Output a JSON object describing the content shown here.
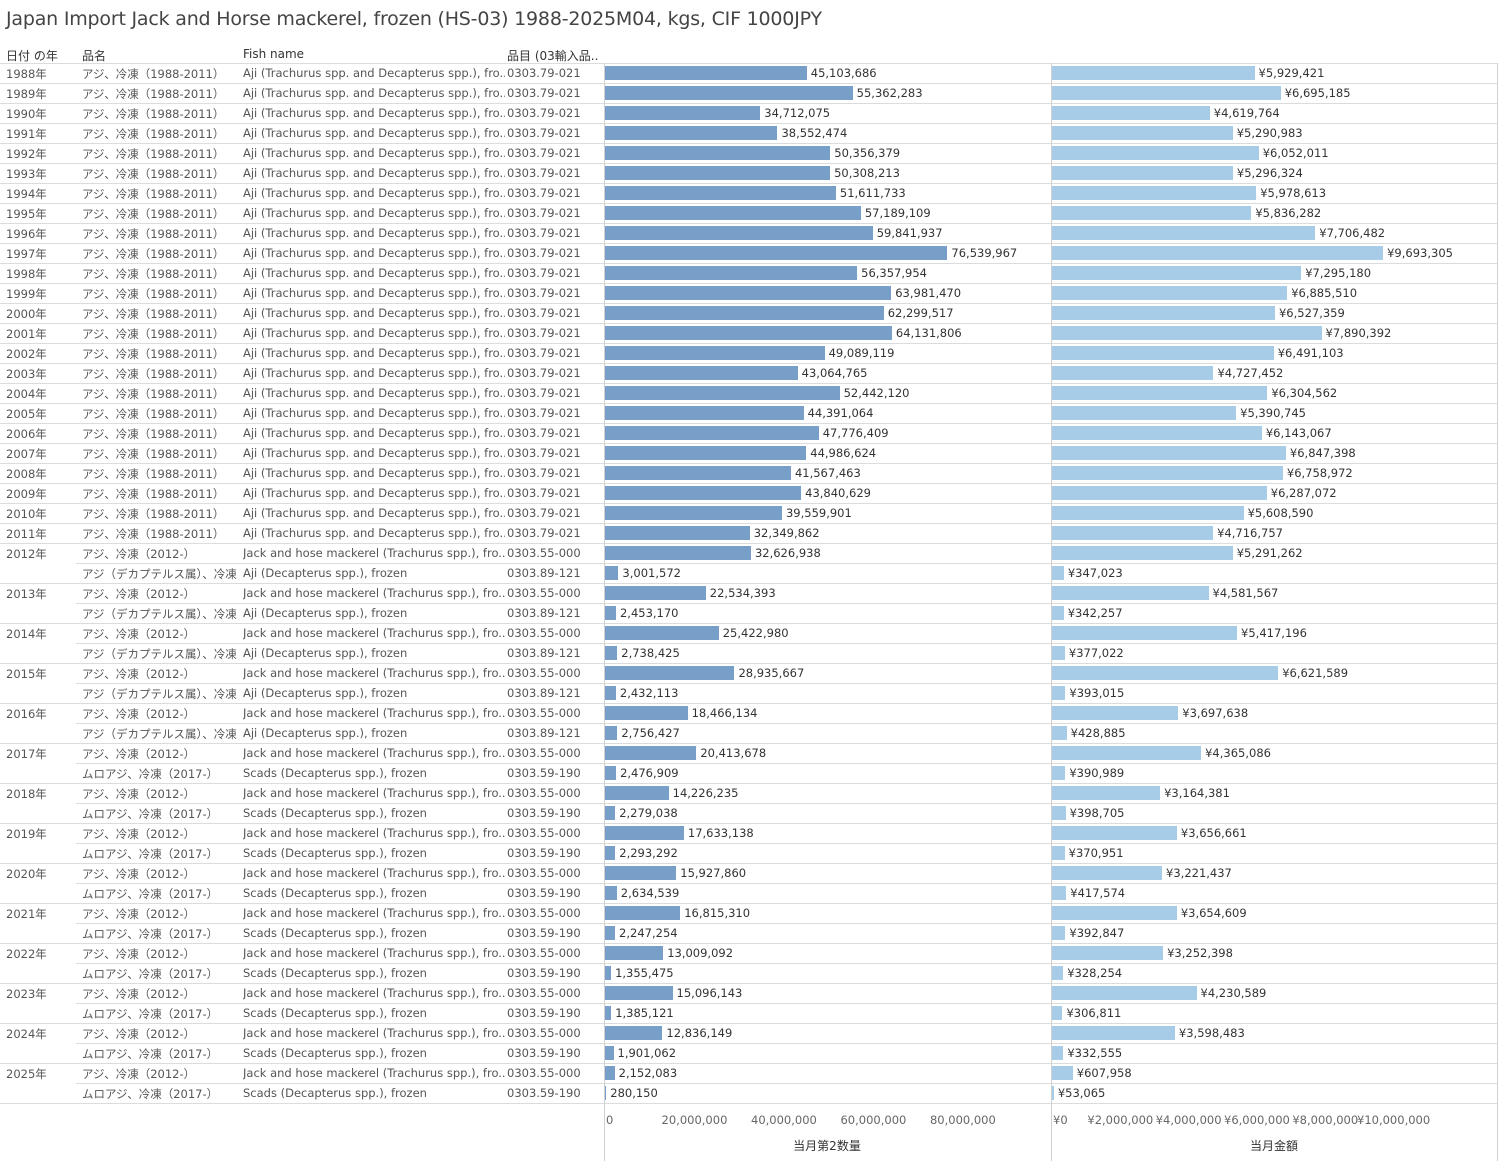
{
  "title": "Japan Import Jack and Horse mackerel, frozen (HS-03) 1988-2025M04, kgs, CIF 1000JPY",
  "headers": {
    "year": "日付 の年",
    "name": "品名",
    "fish": "Fish name",
    "code": "品目 (03輸入品.."
  },
  "chart_data": {
    "type": "bar",
    "title": "Japan Import Jack and Horse mackerel, frozen (HS-03) 1988-2025M04, kgs, CIF 1000JPY",
    "series": [
      {
        "name": "当月第2数量",
        "axis_label": "当月第2数量",
        "xlim": [
          0,
          95000000
        ],
        "ticks": [
          "0",
          "20,000,000",
          "40,000,000",
          "60,000,000",
          "80,000,000"
        ],
        "tick_values": [
          0,
          20000000,
          40000000,
          60000000,
          80000000
        ]
      },
      {
        "name": "当月金額",
        "axis_label": "当月金額",
        "xlim": [
          0,
          12500000
        ],
        "ticks": [
          "¥0",
          "¥2,000,000",
          "¥4,000,000",
          "¥6,000,000",
          "¥8,000,000",
          "¥10,000,000"
        ],
        "tick_values": [
          0,
          2000000,
          4000000,
          6000000,
          8000000,
          10000000
        ]
      }
    ],
    "rows": [
      {
        "year": "1988年",
        "name": "アジ、冷凍（1988-2011）",
        "fish": "Aji (Trachurus spp. and Decapterus spp.), fro..",
        "code": "0303.79-021",
        "qty": 45103686,
        "qty_label": "45,103,686",
        "val": 5929421,
        "val_label": "¥5,929,421"
      },
      {
        "year": "1989年",
        "name": "アジ、冷凍（1988-2011）",
        "fish": "Aji (Trachurus spp. and Decapterus spp.), fro..",
        "code": "0303.79-021",
        "qty": 55362283,
        "qty_label": "55,362,283",
        "val": 6695185,
        "val_label": "¥6,695,185"
      },
      {
        "year": "1990年",
        "name": "アジ、冷凍（1988-2011）",
        "fish": "Aji (Trachurus spp. and Decapterus spp.), fro..",
        "code": "0303.79-021",
        "qty": 34712075,
        "qty_label": "34,712,075",
        "val": 4619764,
        "val_label": "¥4,619,764"
      },
      {
        "year": "1991年",
        "name": "アジ、冷凍（1988-2011）",
        "fish": "Aji (Trachurus spp. and Decapterus spp.), fro..",
        "code": "0303.79-021",
        "qty": 38552474,
        "qty_label": "38,552,474",
        "val": 5290983,
        "val_label": "¥5,290,983"
      },
      {
        "year": "1992年",
        "name": "アジ、冷凍（1988-2011）",
        "fish": "Aji (Trachurus spp. and Decapterus spp.), fro..",
        "code": "0303.79-021",
        "qty": 50356379,
        "qty_label": "50,356,379",
        "val": 6052011,
        "val_label": "¥6,052,011"
      },
      {
        "year": "1993年",
        "name": "アジ、冷凍（1988-2011）",
        "fish": "Aji (Trachurus spp. and Decapterus spp.), fro..",
        "code": "0303.79-021",
        "qty": 50308213,
        "qty_label": "50,308,213",
        "val": 5296324,
        "val_label": "¥5,296,324"
      },
      {
        "year": "1994年",
        "name": "アジ、冷凍（1988-2011）",
        "fish": "Aji (Trachurus spp. and Decapterus spp.), fro..",
        "code": "0303.79-021",
        "qty": 51611733,
        "qty_label": "51,611,733",
        "val": 5978613,
        "val_label": "¥5,978,613"
      },
      {
        "year": "1995年",
        "name": "アジ、冷凍（1988-2011）",
        "fish": "Aji (Trachurus spp. and Decapterus spp.), fro..",
        "code": "0303.79-021",
        "qty": 57189109,
        "qty_label": "57,189,109",
        "val": 5836282,
        "val_label": "¥5,836,282"
      },
      {
        "year": "1996年",
        "name": "アジ、冷凍（1988-2011）",
        "fish": "Aji (Trachurus spp. and Decapterus spp.), fro..",
        "code": "0303.79-021",
        "qty": 59841937,
        "qty_label": "59,841,937",
        "val": 7706482,
        "val_label": "¥7,706,482"
      },
      {
        "year": "1997年",
        "name": "アジ、冷凍（1988-2011）",
        "fish": "Aji (Trachurus spp. and Decapterus spp.), fro..",
        "code": "0303.79-021",
        "qty": 76539967,
        "qty_label": "76,539,967",
        "val": 9693305,
        "val_label": "¥9,693,305"
      },
      {
        "year": "1998年",
        "name": "アジ、冷凍（1988-2011）",
        "fish": "Aji (Trachurus spp. and Decapterus spp.), fro..",
        "code": "0303.79-021",
        "qty": 56357954,
        "qty_label": "56,357,954",
        "val": 7295180,
        "val_label": "¥7,295,180"
      },
      {
        "year": "1999年",
        "name": "アジ、冷凍（1988-2011）",
        "fish": "Aji (Trachurus spp. and Decapterus spp.), fro..",
        "code": "0303.79-021",
        "qty": 63981470,
        "qty_label": "63,981,470",
        "val": 6885510,
        "val_label": "¥6,885,510"
      },
      {
        "year": "2000年",
        "name": "アジ、冷凍（1988-2011）",
        "fish": "Aji (Trachurus spp. and Decapterus spp.), fro..",
        "code": "0303.79-021",
        "qty": 62299517,
        "qty_label": "62,299,517",
        "val": 6527359,
        "val_label": "¥6,527,359"
      },
      {
        "year": "2001年",
        "name": "アジ、冷凍（1988-2011）",
        "fish": "Aji (Trachurus spp. and Decapterus spp.), fro..",
        "code": "0303.79-021",
        "qty": 64131806,
        "qty_label": "64,131,806",
        "val": 7890392,
        "val_label": "¥7,890,392"
      },
      {
        "year": "2002年",
        "name": "アジ、冷凍（1988-2011）",
        "fish": "Aji (Trachurus spp. and Decapterus spp.), fro..",
        "code": "0303.79-021",
        "qty": 49089119,
        "qty_label": "49,089,119",
        "val": 6491103,
        "val_label": "¥6,491,103"
      },
      {
        "year": "2003年",
        "name": "アジ、冷凍（1988-2011）",
        "fish": "Aji (Trachurus spp. and Decapterus spp.), fro..",
        "code": "0303.79-021",
        "qty": 43064765,
        "qty_label": "43,064,765",
        "val": 4727452,
        "val_label": "¥4,727,452"
      },
      {
        "year": "2004年",
        "name": "アジ、冷凍（1988-2011）",
        "fish": "Aji (Trachurus spp. and Decapterus spp.), fro..",
        "code": "0303.79-021",
        "qty": 52442120,
        "qty_label": "52,442,120",
        "val": 6304562,
        "val_label": "¥6,304,562"
      },
      {
        "year": "2005年",
        "name": "アジ、冷凍（1988-2011）",
        "fish": "Aji (Trachurus spp. and Decapterus spp.), fro..",
        "code": "0303.79-021",
        "qty": 44391064,
        "qty_label": "44,391,064",
        "val": 5390745,
        "val_label": "¥5,390,745"
      },
      {
        "year": "2006年",
        "name": "アジ、冷凍（1988-2011）",
        "fish": "Aji (Trachurus spp. and Decapterus spp.), fro..",
        "code": "0303.79-021",
        "qty": 47776409,
        "qty_label": "47,776,409",
        "val": 6143067,
        "val_label": "¥6,143,067"
      },
      {
        "year": "2007年",
        "name": "アジ、冷凍（1988-2011）",
        "fish": "Aji (Trachurus spp. and Decapterus spp.), fro..",
        "code": "0303.79-021",
        "qty": 44986624,
        "qty_label": "44,986,624",
        "val": 6847398,
        "val_label": "¥6,847,398"
      },
      {
        "year": "2008年",
        "name": "アジ、冷凍（1988-2011）",
        "fish": "Aji (Trachurus spp. and Decapterus spp.), fro..",
        "code": "0303.79-021",
        "qty": 41567463,
        "qty_label": "41,567,463",
        "val": 6758972,
        "val_label": "¥6,758,972"
      },
      {
        "year": "2009年",
        "name": "アジ、冷凍（1988-2011）",
        "fish": "Aji (Trachurus spp. and Decapterus spp.), fro..",
        "code": "0303.79-021",
        "qty": 43840629,
        "qty_label": "43,840,629",
        "val": 6287072,
        "val_label": "¥6,287,072"
      },
      {
        "year": "2010年",
        "name": "アジ、冷凍（1988-2011）",
        "fish": "Aji (Trachurus spp. and Decapterus spp.), fro..",
        "code": "0303.79-021",
        "qty": 39559901,
        "qty_label": "39,559,901",
        "val": 5608590,
        "val_label": "¥5,608,590"
      },
      {
        "year": "2011年",
        "name": "アジ、冷凍（1988-2011）",
        "fish": "Aji (Trachurus spp. and Decapterus spp.), fro..",
        "code": "0303.79-021",
        "qty": 32349862,
        "qty_label": "32,349,862",
        "val": 4716757,
        "val_label": "¥4,716,757"
      },
      {
        "year": "2012年",
        "name": "アジ、冷凍（2012-）",
        "fish": "Jack and hose mackerel (Trachurus spp.), fro..",
        "code": "0303.55-000",
        "qty": 32626938,
        "qty_label": "32,626,938",
        "val": 5291262,
        "val_label": "¥5,291,262"
      },
      {
        "year": "",
        "name": "アジ（デカプテルス属）、冷凍..",
        "fish": "Aji (Decapterus spp.), frozen",
        "code": "0303.89-121",
        "qty": 3001572,
        "qty_label": "3,001,572",
        "val": 347023,
        "val_label": "¥347,023"
      },
      {
        "year": "2013年",
        "name": "アジ、冷凍（2012-）",
        "fish": "Jack and hose mackerel (Trachurus spp.), fro..",
        "code": "0303.55-000",
        "qty": 22534393,
        "qty_label": "22,534,393",
        "val": 4581567,
        "val_label": "¥4,581,567"
      },
      {
        "year": "",
        "name": "アジ（デカプテルス属）、冷凍..",
        "fish": "Aji (Decapterus spp.), frozen",
        "code": "0303.89-121",
        "qty": 2453170,
        "qty_label": "2,453,170",
        "val": 342257,
        "val_label": "¥342,257"
      },
      {
        "year": "2014年",
        "name": "アジ、冷凍（2012-）",
        "fish": "Jack and hose mackerel (Trachurus spp.), fro..",
        "code": "0303.55-000",
        "qty": 25422980,
        "qty_label": "25,422,980",
        "val": 5417196,
        "val_label": "¥5,417,196"
      },
      {
        "year": "",
        "name": "アジ（デカプテルス属）、冷凍..",
        "fish": "Aji (Decapterus spp.), frozen",
        "code": "0303.89-121",
        "qty": 2738425,
        "qty_label": "2,738,425",
        "val": 377022,
        "val_label": "¥377,022"
      },
      {
        "year": "2015年",
        "name": "アジ、冷凍（2012-）",
        "fish": "Jack and hose mackerel (Trachurus spp.), fro..",
        "code": "0303.55-000",
        "qty": 28935667,
        "qty_label": "28,935,667",
        "val": 6621589,
        "val_label": "¥6,621,589"
      },
      {
        "year": "",
        "name": "アジ（デカプテルス属）、冷凍..",
        "fish": "Aji (Decapterus spp.), frozen",
        "code": "0303.89-121",
        "qty": 2432113,
        "qty_label": "2,432,113",
        "val": 393015,
        "val_label": "¥393,015"
      },
      {
        "year": "2016年",
        "name": "アジ、冷凍（2012-）",
        "fish": "Jack and hose mackerel (Trachurus spp.), fro..",
        "code": "0303.55-000",
        "qty": 18466134,
        "qty_label": "18,466,134",
        "val": 3697638,
        "val_label": "¥3,697,638"
      },
      {
        "year": "",
        "name": "アジ（デカプテルス属）、冷凍..",
        "fish": "Aji (Decapterus spp.), frozen",
        "code": "0303.89-121",
        "qty": 2756427,
        "qty_label": "2,756,427",
        "val": 428885,
        "val_label": "¥428,885"
      },
      {
        "year": "2017年",
        "name": "アジ、冷凍（2012-）",
        "fish": "Jack and hose mackerel (Trachurus spp.), fro..",
        "code": "0303.55-000",
        "qty": 20413678,
        "qty_label": "20,413,678",
        "val": 4365086,
        "val_label": "¥4,365,086"
      },
      {
        "year": "",
        "name": "ムロアジ、冷凍（2017-）",
        "fish": "Scads (Decapterus spp.), frozen",
        "code": "0303.59-190",
        "qty": 2476909,
        "qty_label": "2,476,909",
        "val": 390989,
        "val_label": "¥390,989"
      },
      {
        "year": "2018年",
        "name": "アジ、冷凍（2012-）",
        "fish": "Jack and hose mackerel (Trachurus spp.), fro..",
        "code": "0303.55-000",
        "qty": 14226235,
        "qty_label": "14,226,235",
        "val": 3164381,
        "val_label": "¥3,164,381"
      },
      {
        "year": "",
        "name": "ムロアジ、冷凍（2017-）",
        "fish": "Scads (Decapterus spp.), frozen",
        "code": "0303.59-190",
        "qty": 2279038,
        "qty_label": "2,279,038",
        "val": 398705,
        "val_label": "¥398,705"
      },
      {
        "year": "2019年",
        "name": "アジ、冷凍（2012-）",
        "fish": "Jack and hose mackerel (Trachurus spp.), fro..",
        "code": "0303.55-000",
        "qty": 17633138,
        "qty_label": "17,633,138",
        "val": 3656661,
        "val_label": "¥3,656,661"
      },
      {
        "year": "",
        "name": "ムロアジ、冷凍（2017-）",
        "fish": "Scads (Decapterus spp.), frozen",
        "code": "0303.59-190",
        "qty": 2293292,
        "qty_label": "2,293,292",
        "val": 370951,
        "val_label": "¥370,951"
      },
      {
        "year": "2020年",
        "name": "アジ、冷凍（2012-）",
        "fish": "Jack and hose mackerel (Trachurus spp.), fro..",
        "code": "0303.55-000",
        "qty": 15927860,
        "qty_label": "15,927,860",
        "val": 3221437,
        "val_label": "¥3,221,437"
      },
      {
        "year": "",
        "name": "ムロアジ、冷凍（2017-）",
        "fish": "Scads (Decapterus spp.), frozen",
        "code": "0303.59-190",
        "qty": 2634539,
        "qty_label": "2,634,539",
        "val": 417574,
        "val_label": "¥417,574"
      },
      {
        "year": "2021年",
        "name": "アジ、冷凍（2012-）",
        "fish": "Jack and hose mackerel (Trachurus spp.), fro..",
        "code": "0303.55-000",
        "qty": 16815310,
        "qty_label": "16,815,310",
        "val": 3654609,
        "val_label": "¥3,654,609"
      },
      {
        "year": "",
        "name": "ムロアジ、冷凍（2017-）",
        "fish": "Scads (Decapterus spp.), frozen",
        "code": "0303.59-190",
        "qty": 2247254,
        "qty_label": "2,247,254",
        "val": 392847,
        "val_label": "¥392,847"
      },
      {
        "year": "2022年",
        "name": "アジ、冷凍（2012-）",
        "fish": "Jack and hose mackerel (Trachurus spp.), fro..",
        "code": "0303.55-000",
        "qty": 13009092,
        "qty_label": "13,009,092",
        "val": 3252398,
        "val_label": "¥3,252,398"
      },
      {
        "year": "",
        "name": "ムロアジ、冷凍（2017-）",
        "fish": "Scads (Decapterus spp.), frozen",
        "code": "0303.59-190",
        "qty": 1355475,
        "qty_label": "1,355,475",
        "val": 328254,
        "val_label": "¥328,254"
      },
      {
        "year": "2023年",
        "name": "アジ、冷凍（2012-）",
        "fish": "Jack and hose mackerel (Trachurus spp.), fro..",
        "code": "0303.55-000",
        "qty": 15096143,
        "qty_label": "15,096,143",
        "val": 4230589,
        "val_label": "¥4,230,589"
      },
      {
        "year": "",
        "name": "ムロアジ、冷凍（2017-）",
        "fish": "Scads (Decapterus spp.), frozen",
        "code": "0303.59-190",
        "qty": 1385121,
        "qty_label": "1,385,121",
        "val": 306811,
        "val_label": "¥306,811"
      },
      {
        "year": "2024年",
        "name": "アジ、冷凍（2012-）",
        "fish": "Jack and hose mackerel (Trachurus spp.), fro..",
        "code": "0303.55-000",
        "qty": 12836149,
        "qty_label": "12,836,149",
        "val": 3598483,
        "val_label": "¥3,598,483"
      },
      {
        "year": "",
        "name": "ムロアジ、冷凍（2017-）",
        "fish": "Scads (Decapterus spp.), frozen",
        "code": "0303.59-190",
        "qty": 1901062,
        "qty_label": "1,901,062",
        "val": 332555,
        "val_label": "¥332,555"
      },
      {
        "year": "2025年",
        "name": "アジ、冷凍（2012-）",
        "fish": "Jack and hose mackerel (Trachurus spp.), fro..",
        "code": "0303.55-000",
        "qty": 2152083,
        "qty_label": "2,152,083",
        "val": 607958,
        "val_label": "¥607,958"
      },
      {
        "year": "",
        "name": "ムロアジ、冷凍（2017-）",
        "fish": "Scads (Decapterus spp.), frozen",
        "code": "0303.59-190",
        "qty": 280150,
        "qty_label": "280,150",
        "val": 53065,
        "val_label": "¥53,065"
      }
    ],
    "colors": {
      "qty_bar": "#779fc7",
      "val_bar": "#a7cce8"
    },
    "grid": false
  }
}
